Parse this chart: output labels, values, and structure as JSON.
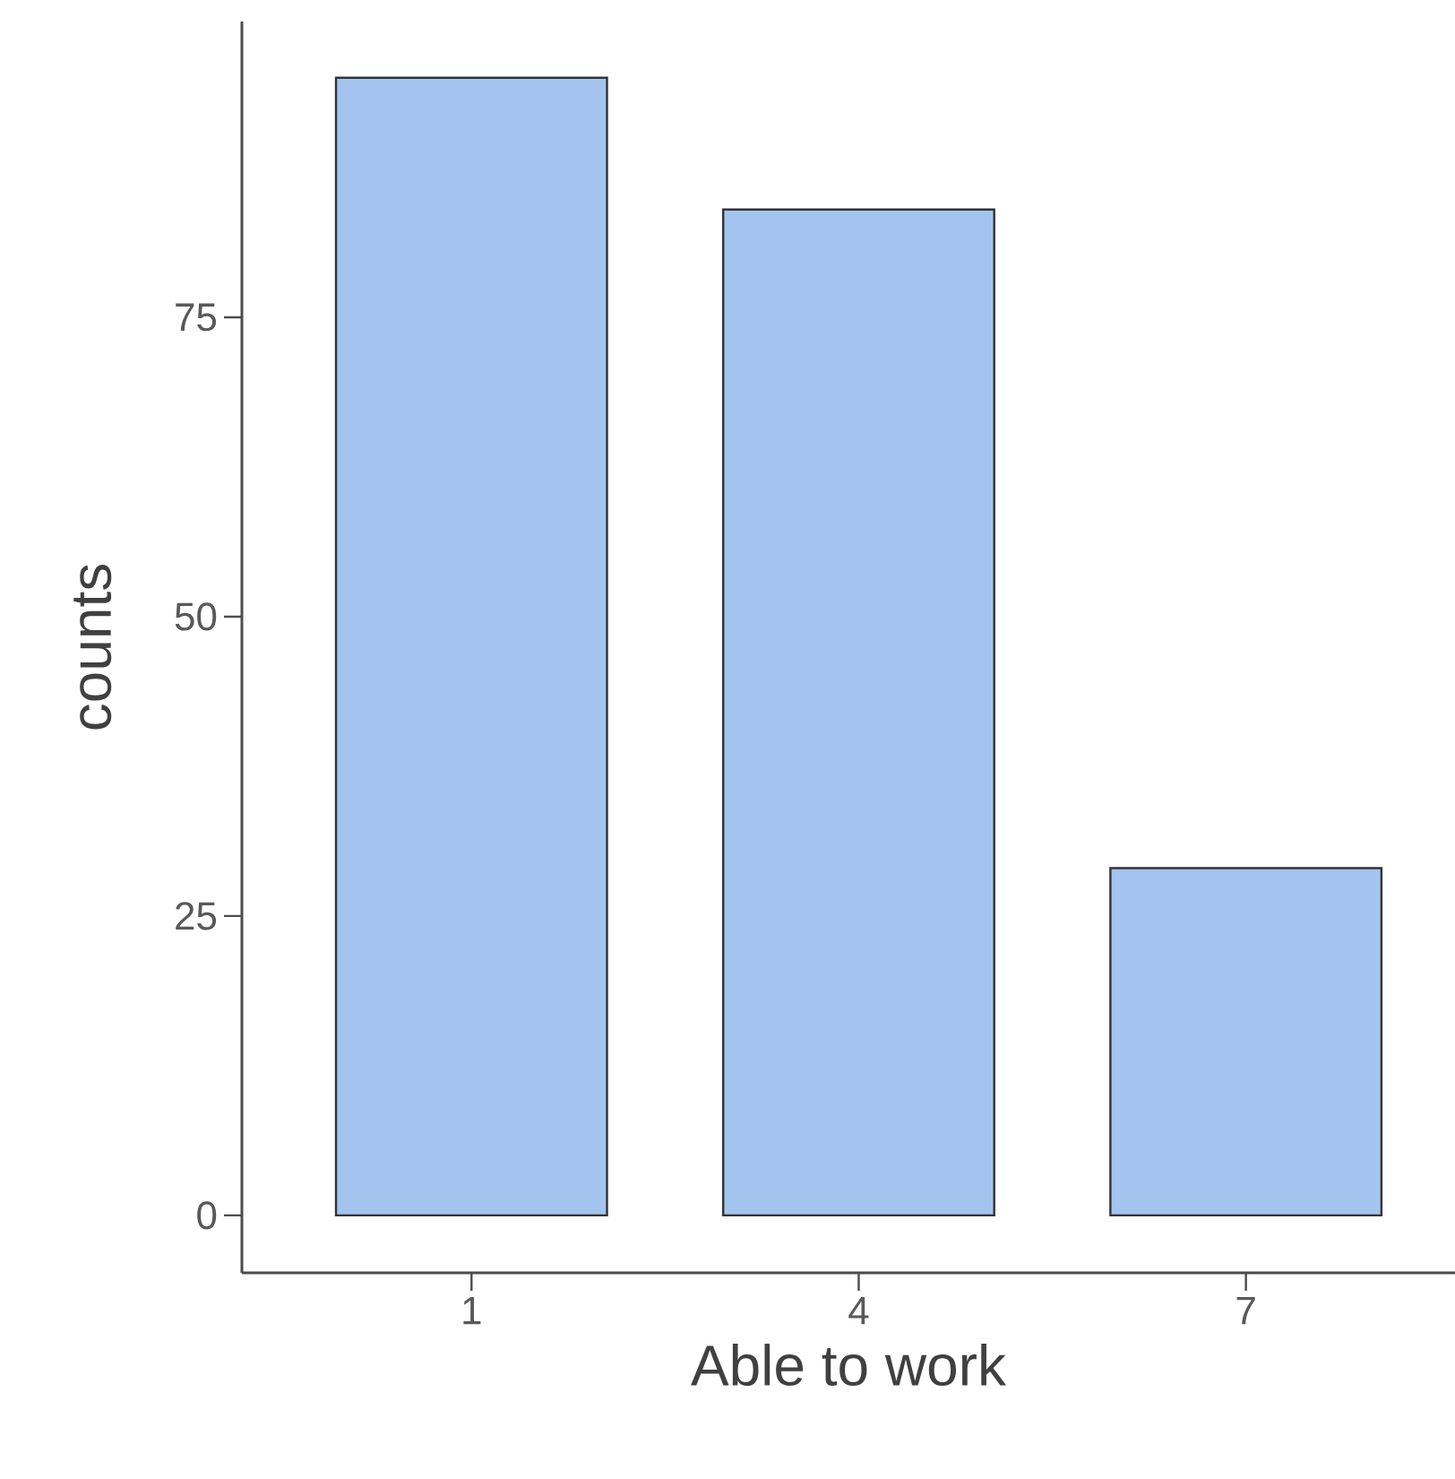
{
  "chart_data": {
    "type": "bar",
    "xlabel": "Able to work",
    "ylabel": "counts",
    "categories": [
      "1",
      "4",
      "7"
    ],
    "values": [
      95,
      84,
      29
    ],
    "color": "#a4c4f0",
    "ylim": [
      -4.8,
      99.7
    ],
    "yticks": [
      0,
      25,
      50,
      75
    ],
    "grid": false
  }
}
